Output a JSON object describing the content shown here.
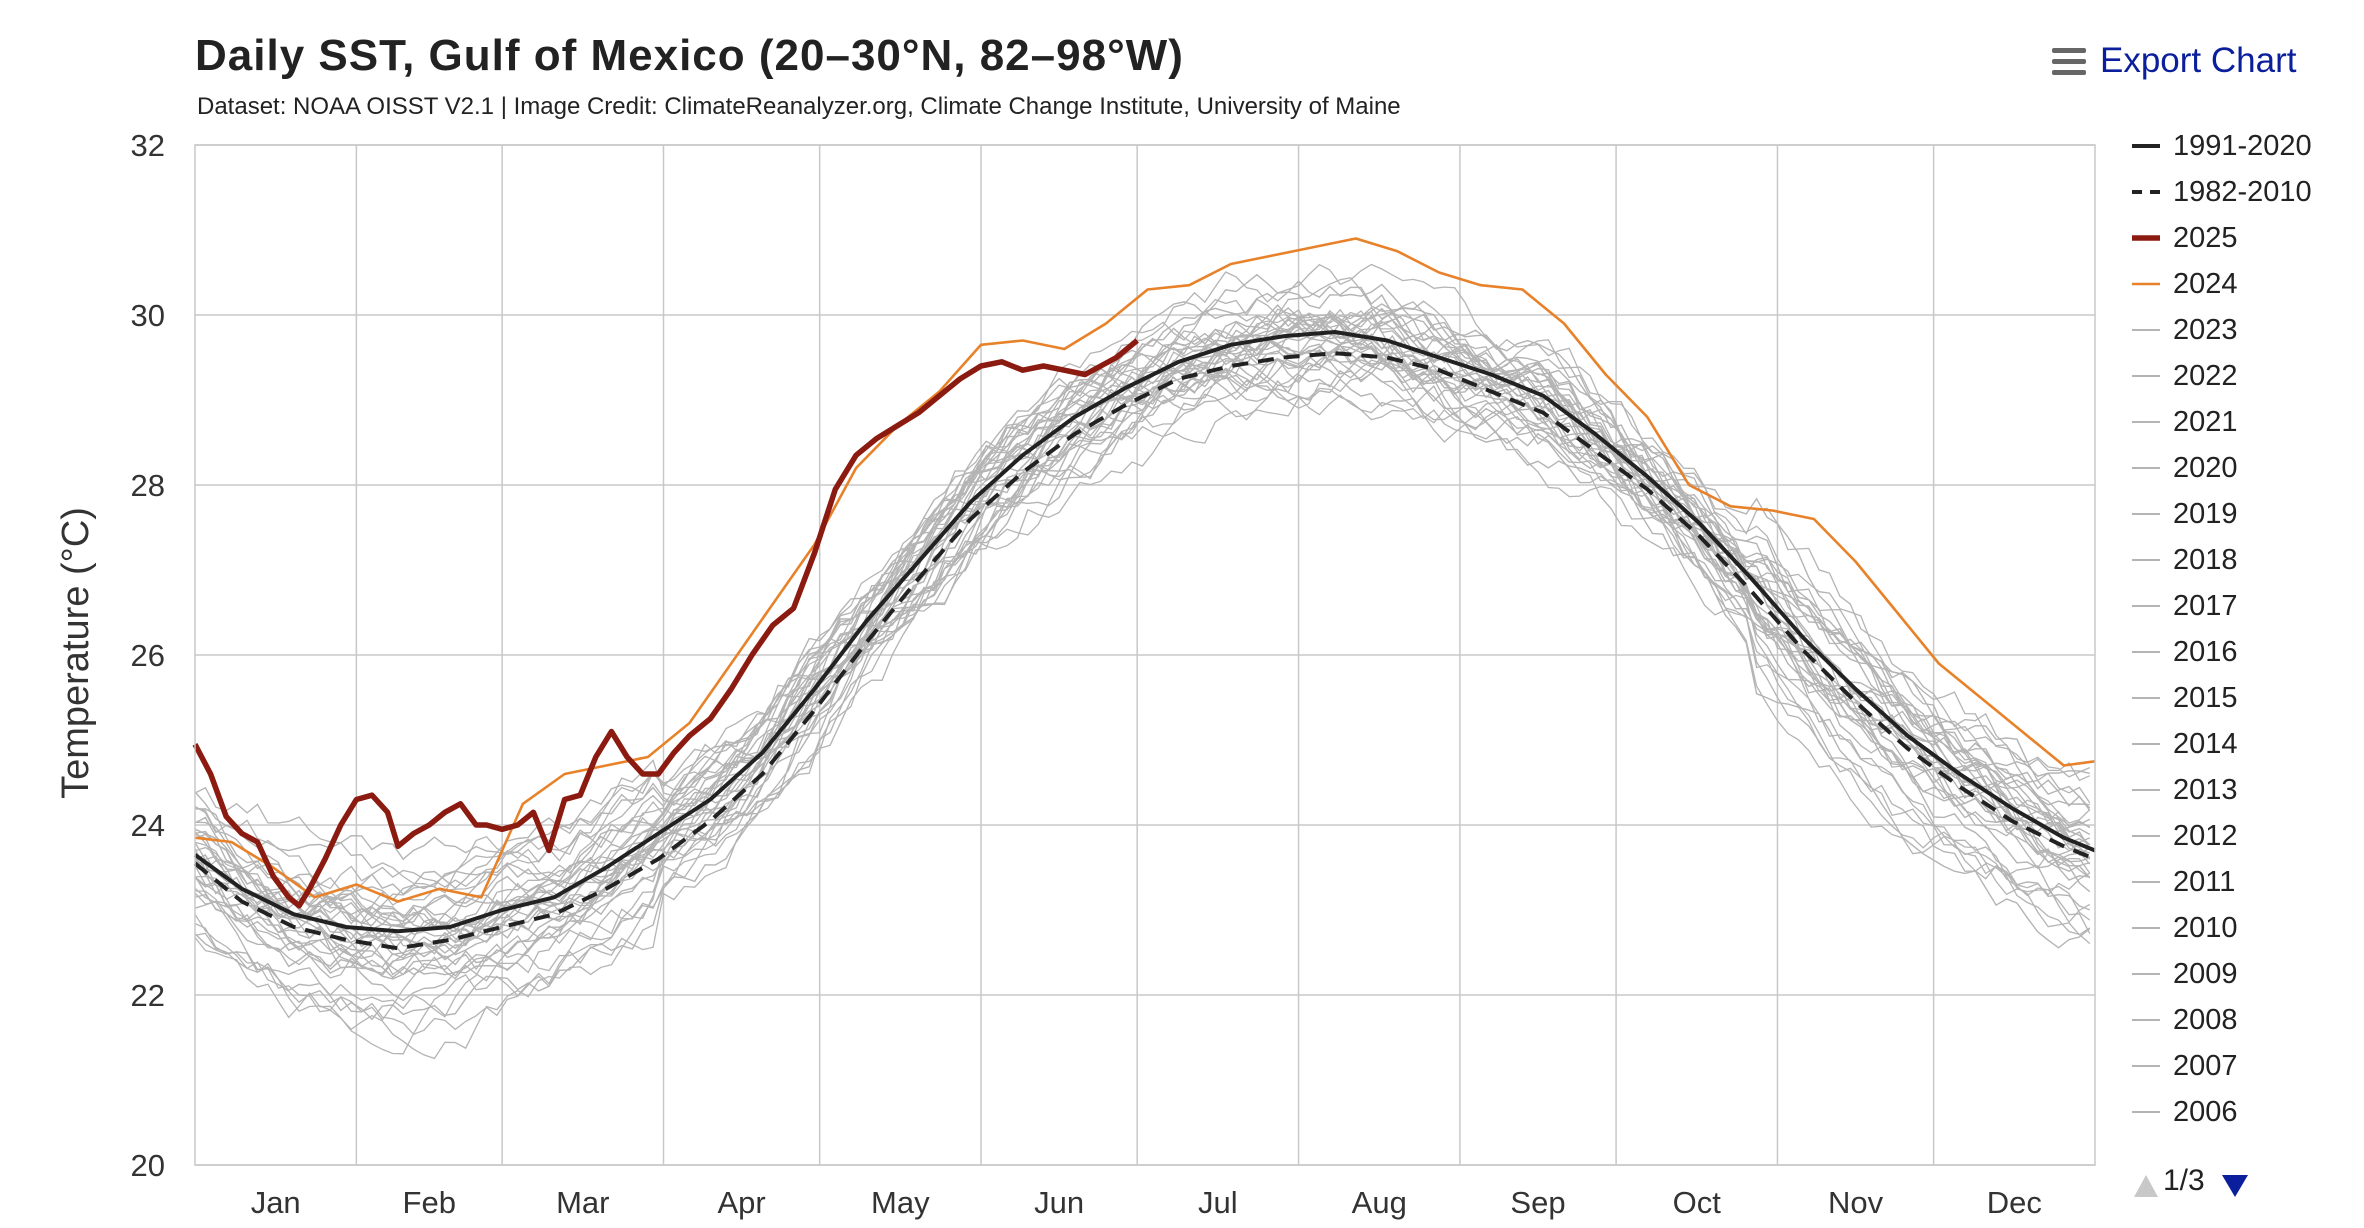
{
  "export": {
    "label": "Export Chart",
    "icon": "menu-icon"
  },
  "pager": {
    "text": "1/3",
    "up_icon": "arrow-up-icon",
    "down_icon": "arrow-down-icon"
  },
  "colors": {
    "y2025": "#8b1a10",
    "y2024": "#e8822a",
    "other": "#b4b4b4",
    "clim": "#222222",
    "grid": "#c8c8c8",
    "accent": "#0b1f9c"
  },
  "chart_data": {
    "type": "line",
    "title": "Daily SST, Gulf of Mexico (20–30°N, 82–98°W)",
    "subtitle": "Dataset: NOAA OISST V2.1 | Image Credit: ClimateReanalyzer.org, Climate Change Institute, University of Maine",
    "ylabel": "Temperature (°C)",
    "xlabel": "",
    "ylim": [
      20,
      32
    ],
    "yticks": [
      20,
      22,
      24,
      26,
      28,
      30,
      32
    ],
    "xlim": [
      1,
      366
    ],
    "months": [
      {
        "label": "Jan",
        "start": 1
      },
      {
        "label": "Feb",
        "start": 32
      },
      {
        "label": "Mar",
        "start": 60
      },
      {
        "label": "Apr",
        "start": 91
      },
      {
        "label": "May",
        "start": 121
      },
      {
        "label": "Jun",
        "start": 152
      },
      {
        "label": "Jul",
        "start": 182
      },
      {
        "label": "Aug",
        "start": 213
      },
      {
        "label": "Sep",
        "start": 244
      },
      {
        "label": "Oct",
        "start": 274
      },
      {
        "label": "Nov",
        "start": 305
      },
      {
        "label": "Dec",
        "start": 335
      }
    ],
    "grid": true,
    "legend_position": "right",
    "series": [
      {
        "name": "1991-2020",
        "style": "solid-black",
        "x": [
          1,
          10,
          20,
          30,
          40,
          50,
          60,
          70,
          80,
          90,
          100,
          110,
          120,
          130,
          140,
          150,
          160,
          170,
          180,
          190,
          200,
          210,
          220,
          230,
          240,
          250,
          260,
          270,
          280,
          290,
          300,
          310,
          320,
          330,
          340,
          350,
          360,
          366
        ],
        "y": [
          23.65,
          23.25,
          22.95,
          22.8,
          22.75,
          22.8,
          23.0,
          23.15,
          23.5,
          23.9,
          24.3,
          24.85,
          25.6,
          26.4,
          27.1,
          27.8,
          28.35,
          28.8,
          29.15,
          29.45,
          29.65,
          29.75,
          29.8,
          29.7,
          29.5,
          29.3,
          29.05,
          28.6,
          28.1,
          27.55,
          26.9,
          26.2,
          25.6,
          25.05,
          24.6,
          24.2,
          23.85,
          23.7
        ]
      },
      {
        "name": "1982-2010",
        "style": "dashed-black",
        "x": [
          1,
          10,
          20,
          30,
          40,
          50,
          60,
          70,
          80,
          90,
          100,
          110,
          120,
          130,
          140,
          150,
          160,
          170,
          180,
          190,
          200,
          210,
          220,
          230,
          240,
          250,
          260,
          270,
          280,
          290,
          300,
          310,
          320,
          330,
          340,
          350,
          360,
          366
        ],
        "y": [
          23.55,
          23.1,
          22.8,
          22.65,
          22.55,
          22.65,
          22.8,
          22.95,
          23.25,
          23.6,
          24.05,
          24.6,
          25.35,
          26.15,
          26.9,
          27.6,
          28.15,
          28.6,
          28.95,
          29.25,
          29.4,
          29.5,
          29.55,
          29.5,
          29.35,
          29.1,
          28.85,
          28.4,
          27.95,
          27.4,
          26.75,
          26.05,
          25.45,
          24.9,
          24.45,
          24.05,
          23.75,
          23.6
        ]
      },
      {
        "name": "2025",
        "style": "thick-darkred",
        "x": [
          1,
          4,
          7,
          10,
          13,
          16,
          19,
          21,
          23,
          26,
          29,
          32,
          35,
          38,
          40,
          43,
          46,
          49,
          52,
          55,
          57,
          60,
          63,
          66,
          69,
          72,
          75,
          78,
          81,
          84,
          87,
          90,
          93,
          96,
          100,
          104,
          108,
          112,
          116,
          120,
          124,
          128,
          132,
          136,
          140,
          144,
          148,
          152,
          156,
          160,
          164,
          168,
          172,
          178,
          182
        ],
        "y": [
          24.95,
          24.6,
          24.1,
          23.9,
          23.8,
          23.4,
          23.15,
          23.05,
          23.25,
          23.6,
          24.0,
          24.3,
          24.35,
          24.15,
          23.75,
          23.9,
          24.0,
          24.15,
          24.25,
          24.0,
          24.0,
          23.95,
          24.0,
          24.15,
          23.7,
          24.3,
          24.35,
          24.8,
          25.1,
          24.8,
          24.6,
          24.6,
          24.85,
          25.05,
          25.25,
          25.6,
          26.0,
          26.35,
          26.55,
          27.2,
          27.95,
          28.35,
          28.55,
          28.7,
          28.85,
          29.05,
          29.25,
          29.4,
          29.45,
          29.35,
          29.4,
          29.35,
          29.3,
          29.5,
          29.7
        ]
      },
      {
        "name": "2024",
        "style": "thin-orange",
        "x": [
          1,
          8,
          16,
          24,
          32,
          40,
          48,
          56,
          64,
          72,
          80,
          88,
          96,
          104,
          112,
          120,
          128,
          136,
          144,
          152,
          160,
          168,
          176,
          184,
          192,
          200,
          208,
          216,
          224,
          232,
          240,
          248,
          256,
          264,
          272,
          280,
          288,
          296,
          304,
          312,
          320,
          328,
          336,
          344,
          352,
          360,
          366
        ],
        "y": [
          23.85,
          23.8,
          23.5,
          23.15,
          23.3,
          23.1,
          23.25,
          23.15,
          24.25,
          24.6,
          24.7,
          24.8,
          25.2,
          25.9,
          26.6,
          27.3,
          28.2,
          28.7,
          29.1,
          29.65,
          29.7,
          29.6,
          29.9,
          30.3,
          30.35,
          30.6,
          30.7,
          30.8,
          30.9,
          30.75,
          30.5,
          30.35,
          30.3,
          29.9,
          29.3,
          28.8,
          28.0,
          27.75,
          27.7,
          27.6,
          27.1,
          26.5,
          25.9,
          25.5,
          25.1,
          24.7,
          24.75
        ]
      },
      {
        "name": "2023",
        "style": "thin-gray",
        "offset": 0.45
      },
      {
        "name": "2022",
        "style": "thin-gray",
        "offset": 0.2
      },
      {
        "name": "2021",
        "style": "thin-gray",
        "offset": -0.15
      },
      {
        "name": "2020",
        "style": "thin-gray",
        "offset": 0.35
      },
      {
        "name": "2019",
        "style": "thin-gray",
        "offset": 0.25
      },
      {
        "name": "2018",
        "style": "thin-gray",
        "offset": 0.05
      },
      {
        "name": "2017",
        "style": "thin-gray",
        "offset": 0.3
      },
      {
        "name": "2016",
        "style": "thin-gray",
        "offset": 0.15
      },
      {
        "name": "2015",
        "style": "thin-gray",
        "offset": 0.1
      },
      {
        "name": "2014",
        "style": "thin-gray",
        "offset": -0.3
      },
      {
        "name": "2013",
        "style": "thin-gray",
        "offset": -0.1
      },
      {
        "name": "2012",
        "style": "thin-gray",
        "offset": 0.0
      },
      {
        "name": "2011",
        "style": "thin-gray",
        "offset": -0.2
      },
      {
        "name": "2010",
        "style": "thin-gray",
        "offset": -0.6
      },
      {
        "name": "2009",
        "style": "thin-gray",
        "offset": -0.05
      },
      {
        "name": "2008",
        "style": "thin-gray",
        "offset": -0.25
      },
      {
        "name": "2007",
        "style": "thin-gray",
        "offset": -0.35
      },
      {
        "name": "2006",
        "style": "thin-gray",
        "offset": -0.15
      }
    ],
    "background_years_unlisted": 19
  }
}
